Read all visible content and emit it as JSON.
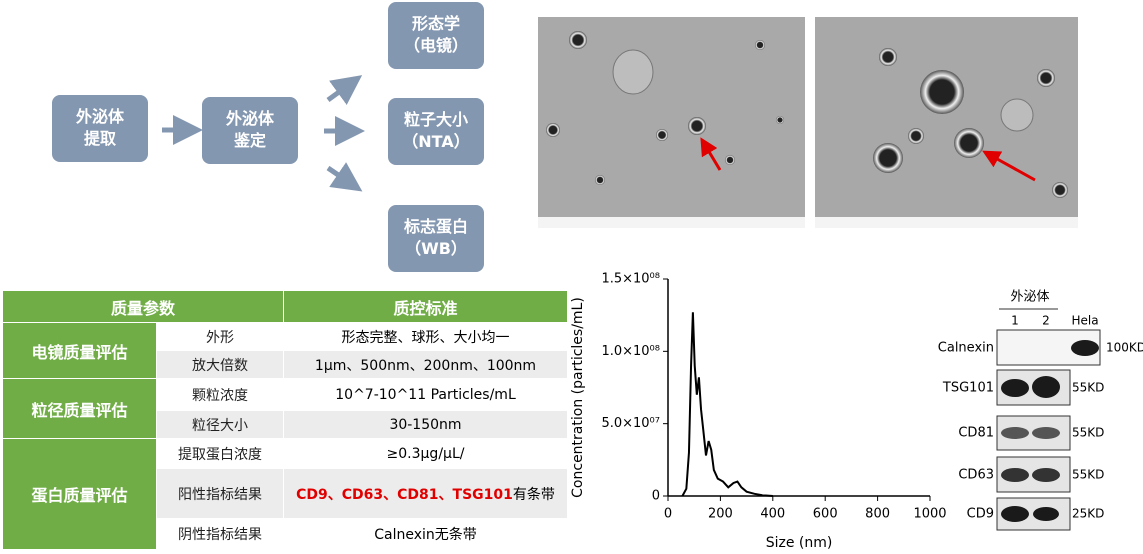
{
  "flow": {
    "nodes": [
      {
        "label": "外泌体\n提取"
      },
      {
        "label": "外泌体\n鉴定"
      },
      {
        "label": "形态学\n（电镜）"
      },
      {
        "label": "粒子大小\n（NTA）"
      },
      {
        "label": "标志蛋白\n（WB）"
      }
    ]
  },
  "table": {
    "header": [
      "质量参数",
      "质控标准"
    ],
    "groups": [
      {
        "name": "电镜质量评估",
        "rows": [
          [
            "外形",
            "形态完整、球形、大小均一"
          ],
          [
            "放大倍数",
            "1μm、500nm、200nm、100nm"
          ]
        ]
      },
      {
        "name": "粒径质量评估",
        "rows": [
          [
            "颗粒浓度",
            "10^7-10^11 Particles/mL"
          ],
          [
            "粒径大小",
            "30-150nm"
          ]
        ]
      },
      {
        "name": "蛋白质量评估",
        "rows": [
          [
            "提取蛋白浓度",
            "≥0.3μg/μL/"
          ],
          [
            "阳性指标结果",
            "CD9、CD63、CD81、TSG101",
            "有条带"
          ],
          [
            "阴性指标结果",
            "Calnexin无条带"
          ]
        ]
      }
    ]
  },
  "chart_data": {
    "type": "line",
    "x_label": "Size (nm)",
    "y_label": "Concentration (particles/mL)",
    "color": "#000000",
    "x": [
      55,
      70,
      80,
      88,
      95,
      102,
      110,
      118,
      126,
      135,
      145,
      155,
      165,
      175,
      190,
      210,
      230,
      250,
      265,
      280,
      300,
      330,
      360,
      400
    ],
    "values": [
      0,
      5000000,
      30000000,
      90000000,
      127000000,
      90000000,
      70000000,
      82000000,
      60000000,
      45000000,
      28000000,
      38000000,
      32000000,
      18000000,
      12000000,
      10000000,
      6000000,
      9000000,
      10000000,
      6000000,
      3000000,
      1500000,
      500000,
      0
    ],
    "xlim": [
      0,
      1000
    ],
    "xticks": [
      0,
      200,
      400,
      600,
      800,
      1000
    ],
    "ylim": [
      0,
      150000000
    ],
    "yticks": [
      0,
      {
        "value": 50000000,
        "label": "5.0×10⁰⁷"
      },
      {
        "value": 100000000,
        "label": "1.0×10⁰⁸"
      },
      {
        "value": 150000000,
        "label": "1.5×10⁰⁸"
      }
    ]
  },
  "blot": {
    "group_label": "外泌体",
    "lanes": [
      "1",
      "2",
      "Hela"
    ],
    "rows": [
      {
        "name": "Calnexin",
        "size": "100KD"
      },
      {
        "name": "TSG101",
        "size": "55KD"
      },
      {
        "name": "CD81",
        "size": "55KD"
      },
      {
        "name": "CD63",
        "size": "55KD"
      },
      {
        "name": "CD9",
        "size": "25KD"
      }
    ]
  }
}
